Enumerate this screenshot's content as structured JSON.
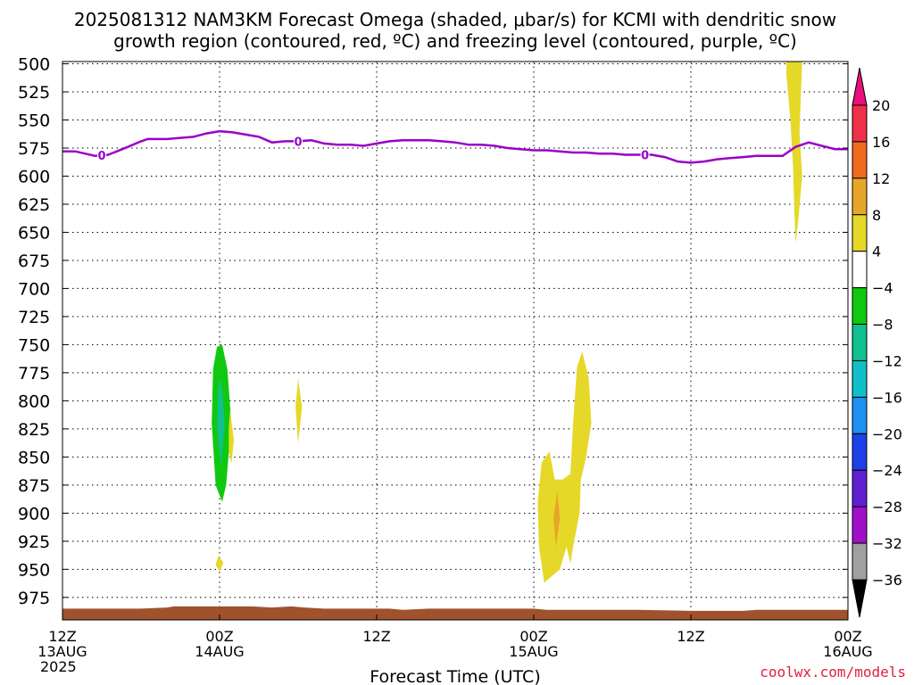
{
  "chart_data": {
    "type": "heatmap",
    "title_line1": "2025081312 NAM3KM Forecast Omega (shaded, μbar/s) for KCMI with dendritic snow",
    "title_line2": "growth region (contoured, red, ºC) and freezing level (contoured, purple, ºC)",
    "xlabel": "Forecast Time (UTC)",
    "ylabel": "",
    "credit": "coolwx.com/models",
    "y_axis": {
      "scale": "linear-pressure-inverted",
      "ylim": [
        975,
        500
      ],
      "ticks": [
        500,
        525,
        550,
        575,
        600,
        625,
        650,
        675,
        700,
        725,
        750,
        775,
        800,
        825,
        850,
        875,
        900,
        925,
        950,
        975
      ]
    },
    "x_axis": {
      "range_hours": [
        0,
        60
      ],
      "ticks": [
        {
          "hour": 0,
          "lines": [
            "12Z",
            "13AUG",
            "2025"
          ]
        },
        {
          "hour": 12,
          "lines": [
            "00Z",
            "14AUG"
          ]
        },
        {
          "hour": 24,
          "lines": [
            "12Z"
          ]
        },
        {
          "hour": 36,
          "lines": [
            "00Z",
            "15AUG"
          ]
        },
        {
          "hour": 48,
          "lines": [
            "12Z"
          ]
        },
        {
          "hour": 60,
          "lines": [
            "00Z",
            "16AUG"
          ]
        }
      ]
    },
    "grid": true,
    "colorbar": {
      "placement": "right",
      "labels": [
        "20",
        "16",
        "12",
        "8",
        "4",
        "−4",
        "−8",
        "−12",
        "−16",
        "−20",
        "−24",
        "−28",
        "−32",
        "−36"
      ],
      "segments": [
        {
          "from": 16,
          "to": 20,
          "color": "#f0304a"
        },
        {
          "from": 12,
          "to": 16,
          "color": "#f06a20"
        },
        {
          "from": 8,
          "to": 12,
          "color": "#e8a628"
        },
        {
          "from": 4,
          "to": 8,
          "color": "#e6d828"
        },
        {
          "from": -4,
          "to": 4,
          "color": "#ffffff"
        },
        {
          "from": -8,
          "to": -4,
          "color": "#10c810"
        },
        {
          "from": -12,
          "to": -8,
          "color": "#10c090"
        },
        {
          "from": -16,
          "to": -12,
          "color": "#10c0c8"
        },
        {
          "from": -20,
          "to": -16,
          "color": "#1e90f0"
        },
        {
          "from": -24,
          "to": -20,
          "color": "#1e40e8"
        },
        {
          "from": -28,
          "to": -24,
          "color": "#6020d0"
        },
        {
          "from": -32,
          "to": -28,
          "color": "#a010c8"
        },
        {
          "from": -36,
          "to": -32,
          "color": "#a0a0a0"
        }
      ],
      "top_arrow_color": "#e8107a",
      "bottom_arrow_color": "#000000"
    },
    "freezing_level": {
      "color": "#9a00c8",
      "contour_label": "0",
      "label_hours": [
        3,
        18,
        44.5
      ],
      "points": [
        [
          0,
          578
        ],
        [
          1,
          578
        ],
        [
          2.5,
          582
        ],
        [
          3.5,
          581
        ],
        [
          5,
          574
        ],
        [
          6,
          569
        ],
        [
          6.5,
          567
        ],
        [
          8,
          567
        ],
        [
          9,
          566
        ],
        [
          10,
          565
        ],
        [
          11,
          562
        ],
        [
          12,
          560
        ],
        [
          13,
          561
        ],
        [
          14,
          563
        ],
        [
          15,
          565
        ],
        [
          16,
          570
        ],
        [
          17,
          569
        ],
        [
          18,
          569
        ],
        [
          19,
          568
        ],
        [
          20,
          571
        ],
        [
          21,
          572
        ],
        [
          22,
          572
        ],
        [
          23,
          573
        ],
        [
          24,
          571
        ],
        [
          25,
          569
        ],
        [
          26,
          568
        ],
        [
          27,
          568
        ],
        [
          28,
          568
        ],
        [
          29,
          569
        ],
        [
          30,
          570
        ],
        [
          31,
          572
        ],
        [
          32,
          572
        ],
        [
          33,
          573
        ],
        [
          34,
          575
        ],
        [
          35,
          576
        ],
        [
          36,
          577
        ],
        [
          37,
          577
        ],
        [
          38,
          578
        ],
        [
          39,
          579
        ],
        [
          40,
          579
        ],
        [
          41,
          580
        ],
        [
          42,
          580
        ],
        [
          43,
          581
        ],
        [
          44,
          581
        ],
        [
          45,
          581
        ],
        [
          46,
          583
        ],
        [
          47,
          587
        ],
        [
          48,
          588
        ],
        [
          49,
          587
        ],
        [
          50,
          585
        ],
        [
          51,
          584
        ],
        [
          52,
          583
        ],
        [
          53,
          582
        ],
        [
          54,
          582
        ],
        [
          55,
          582
        ],
        [
          56,
          574
        ],
        [
          57,
          570
        ],
        [
          58,
          573
        ],
        [
          59,
          576
        ],
        [
          60,
          576
        ]
      ]
    },
    "omega_regions": [
      {
        "level": "4 to 8",
        "color": "#e6d828",
        "points": [
          [
            55.3,
            498
          ],
          [
            56.5,
            498
          ],
          [
            56.3,
            560
          ],
          [
            56.5,
            600
          ],
          [
            56.2,
            640
          ],
          [
            56.0,
            660
          ],
          [
            55.9,
            630
          ],
          [
            55.8,
            590
          ],
          [
            55.6,
            550
          ],
          [
            55.3,
            510
          ]
        ]
      },
      {
        "level": "-8 to -4",
        "color": "#10c810",
        "points": [
          [
            12.2,
            750
          ],
          [
            12.6,
            772
          ],
          [
            12.9,
            820
          ],
          [
            12.5,
            875
          ],
          [
            12.2,
            890
          ],
          [
            11.7,
            875
          ],
          [
            11.4,
            820
          ],
          [
            11.5,
            772
          ],
          [
            11.8,
            752
          ]
        ]
      },
      {
        "level": "-12 to -8",
        "color": "#10c090",
        "points": [
          [
            12.1,
            780
          ],
          [
            12.4,
            820
          ],
          [
            12.1,
            858
          ],
          [
            11.8,
            820
          ],
          [
            11.9,
            790
          ]
        ]
      },
      {
        "level": "4 to 8",
        "color": "#e6d828",
        "points": [
          [
            12.8,
            808
          ],
          [
            13.1,
            835
          ],
          [
            12.9,
            856
          ],
          [
            12.7,
            845
          ],
          [
            12.7,
            825
          ]
        ]
      },
      {
        "level": "4 to 8",
        "color": "#e6d828",
        "points": [
          [
            11.9,
            938
          ],
          [
            12.3,
            944
          ],
          [
            12.0,
            952
          ],
          [
            11.7,
            946
          ]
        ]
      },
      {
        "level": "4 to 8",
        "color": "#e6d828",
        "points": [
          [
            18.0,
            780
          ],
          [
            18.3,
            805
          ],
          [
            18.0,
            838
          ],
          [
            17.8,
            805
          ]
        ]
      },
      {
        "level": "4 to 8",
        "color": "#e6d828",
        "points": [
          [
            37.2,
            845
          ],
          [
            37.6,
            870
          ],
          [
            38.2,
            870
          ],
          [
            38.8,
            865
          ],
          [
            39.0,
            820
          ],
          [
            39.3,
            770
          ],
          [
            39.7,
            756
          ],
          [
            40.2,
            780
          ],
          [
            40.4,
            820
          ],
          [
            40.0,
            850
          ],
          [
            39.6,
            870
          ],
          [
            39.5,
            900
          ],
          [
            39.0,
            930
          ],
          [
            38.8,
            945
          ],
          [
            38.5,
            930
          ],
          [
            38.0,
            950
          ],
          [
            36.8,
            962
          ],
          [
            36.4,
            930
          ],
          [
            36.3,
            890
          ],
          [
            36.6,
            855
          ]
        ]
      },
      {
        "level": "8 to 12",
        "color": "#e8a628",
        "points": [
          [
            37.8,
            880
          ],
          [
            38.0,
            905
          ],
          [
            37.7,
            930
          ],
          [
            37.5,
            905
          ]
        ]
      }
    ],
    "terrain": {
      "color": "#a0522d",
      "points": [
        [
          0,
          985
        ],
        [
          6,
          985
        ],
        [
          8,
          984
        ],
        [
          8.5,
          983
        ],
        [
          11,
          983
        ],
        [
          14.5,
          983
        ],
        [
          16,
          984
        ],
        [
          17.5,
          983
        ],
        [
          18.5,
          984
        ],
        [
          20,
          985
        ],
        [
          25,
          985
        ],
        [
          26,
          986
        ],
        [
          28,
          985
        ],
        [
          36,
          985
        ],
        [
          37,
          986
        ],
        [
          41,
          986
        ],
        [
          44,
          986
        ],
        [
          48,
          987
        ],
        [
          52,
          987
        ],
        [
          53,
          986
        ],
        [
          60,
          986
        ]
      ]
    }
  }
}
